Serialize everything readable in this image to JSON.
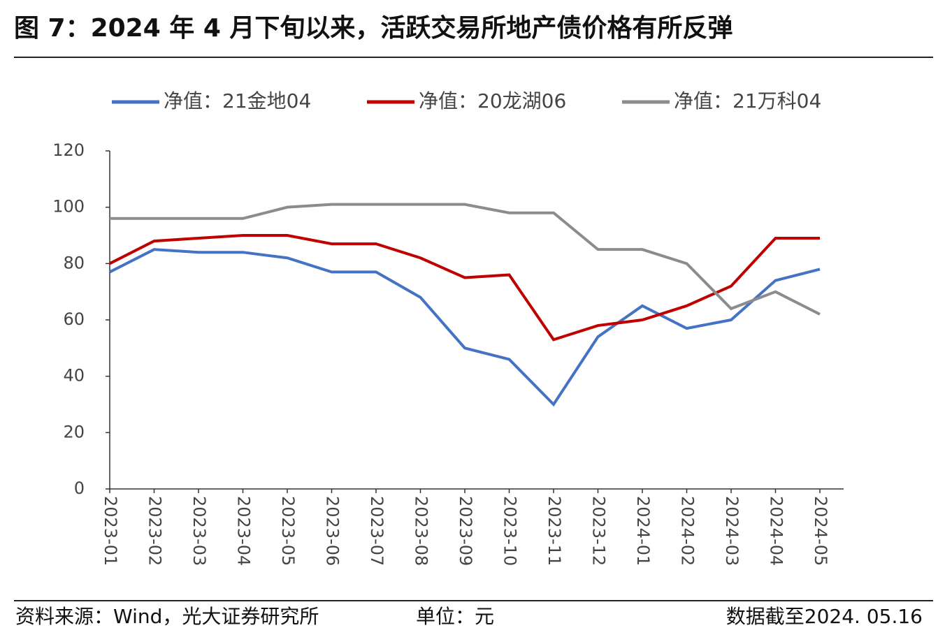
{
  "chart_data": {
    "type": "line",
    "title": "图 7：2024 年 4 月下旬以来，活跃交易所地产债价格有所反弹",
    "x": [
      "2023-01",
      "2023-02",
      "2023-03",
      "2023-04",
      "2023-05",
      "2023-06",
      "2023-07",
      "2023-08",
      "2023-09",
      "2023-10",
      "2023-11",
      "2023-12",
      "2024-01",
      "2024-02",
      "2024-03",
      "2024-04",
      "2024-05"
    ],
    "series": [
      {
        "name": "净值：21金地04",
        "color": "#4472c4",
        "values": [
          77,
          85,
          84,
          84,
          82,
          77,
          77,
          68,
          50,
          46,
          30,
          54,
          65,
          57,
          60,
          74,
          78
        ]
      },
      {
        "name": "净值：20龙湖06",
        "color": "#c00000",
        "values": [
          80,
          88,
          89,
          90,
          90,
          87,
          87,
          82,
          75,
          76,
          53,
          58,
          60,
          65,
          72,
          89,
          89
        ]
      },
      {
        "name": "净值：21万科04",
        "color": "#8c8c8c",
        "values": [
          96,
          96,
          96,
          96,
          100,
          101,
          101,
          101,
          101,
          98,
          98,
          85,
          85,
          80,
          64,
          70,
          62
        ]
      }
    ],
    "ylim": [
      0,
      120
    ],
    "yticks": [
      0,
      20,
      40,
      60,
      80,
      100,
      120
    ],
    "legend": "top",
    "source": "资料来源：Wind，光大证券研究所",
    "unit": "单位：元",
    "date_note": "数据截至2024. 05.16"
  }
}
